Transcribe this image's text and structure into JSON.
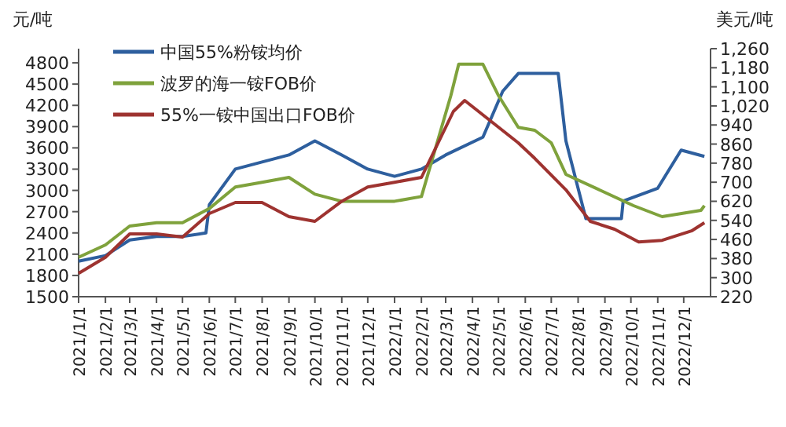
{
  "chart_data": {
    "type": "line",
    "ylabel": "元/吨",
    "y2label": "美元/吨",
    "legend": "top left",
    "grid": false,
    "marker": "none",
    "line_style": "solid",
    "xlim": [
      "2021-01-01",
      "2023-01-01"
    ],
    "xticks": [
      {
        "value": "2021-01-01",
        "label": "2021/1/1"
      },
      {
        "value": "2021-02-01",
        "label": "2021/2/1"
      },
      {
        "value": "2021-03-01",
        "label": "2021/3/1"
      },
      {
        "value": "2021-04-01",
        "label": "2021/4/1"
      },
      {
        "value": "2021-05-01",
        "label": "2021/5/1"
      },
      {
        "value": "2021-06-01",
        "label": "2021/6/1"
      },
      {
        "value": "2021-07-01",
        "label": "2021/7/1"
      },
      {
        "value": "2021-08-01",
        "label": "2021/8/1"
      },
      {
        "value": "2021-09-01",
        "label": "2021/9/1"
      },
      {
        "value": "2021-10-01",
        "label": "2021/10/1"
      },
      {
        "value": "2021-11-01",
        "label": "2021/11/1"
      },
      {
        "value": "2021-12-01",
        "label": "2021/12/1"
      },
      {
        "value": "2022-01-01",
        "label": "2022/1/1"
      },
      {
        "value": "2022-02-01",
        "label": "2022/2/1"
      },
      {
        "value": "2022-03-01",
        "label": "2022/3/1"
      },
      {
        "value": "2022-04-01",
        "label": "2022/4/1"
      },
      {
        "value": "2022-05-01",
        "label": "2022/5/1"
      },
      {
        "value": "2022-06-01",
        "label": "2022/6/1"
      },
      {
        "value": "2022-07-01",
        "label": "2022/7/1"
      },
      {
        "value": "2022-08-01",
        "label": "2022/8/1"
      },
      {
        "value": "2022-09-01",
        "label": "2022/9/1"
      },
      {
        "value": "2022-10-01",
        "label": "2022/10/1"
      },
      {
        "value": "2022-11-01",
        "label": "2022/11/1"
      },
      {
        "value": "2022-12-01",
        "label": "2022/12/1"
      }
    ],
    "ylim": [
      1500,
      5000
    ],
    "yticks": [
      1500,
      1800,
      2100,
      2400,
      2700,
      3000,
      3300,
      3600,
      3900,
      4200,
      4500,
      4800
    ],
    "y2lim": [
      220,
      1260
    ],
    "y2ticks": [
      220,
      300,
      380,
      460,
      540,
      620,
      700,
      780,
      860,
      940,
      {
        "value": 1020,
        "label": "1,020"
      },
      {
        "value": 1100,
        "label": "1,100"
      },
      {
        "value": 1180,
        "label": "1,180"
      },
      {
        "value": 1260,
        "label": "1,260"
      }
    ],
    "series": [
      {
        "name": "中国55%粉铵均价",
        "color": "#2e5f9e",
        "x": [
          "2021-01-01",
          "2021-02-01",
          "2021-03-01",
          "2021-04-01",
          "2021-05-01",
          "2021-05-28",
          "2021-06-01",
          "2021-07-01",
          "2021-08-01",
          "2021-09-01",
          "2021-10-01",
          "2021-11-01",
          "2021-12-01",
          "2022-01-01",
          "2022-02-01",
          "2022-03-01",
          "2022-04-13",
          "2022-05-06",
          "2022-05-24",
          "2022-07-09",
          "2022-07-18",
          "2022-08-10",
          "2022-09-20",
          "2022-09-22",
          "2022-11-01",
          "2022-11-28",
          "2022-12-25"
        ],
        "values": [
          2000,
          2080,
          2300,
          2350,
          2350,
          2400,
          2800,
          3300,
          3400,
          3500,
          3700,
          3500,
          3300,
          3200,
          3300,
          3500,
          3750,
          4400,
          4650,
          4650,
          3700,
          2600,
          2600,
          2850,
          3030,
          3570,
          3480
        ]
      },
      {
        "name": "波罗的海一铵FOB价",
        "color": "#7fa23c",
        "axis": "y2",
        "x": [
          "2021-01-01",
          "2021-02-01",
          "2021-03-01",
          "2021-04-01",
          "2021-05-01",
          "2021-06-01",
          "2021-07-01",
          "2021-08-01",
          "2021-09-01",
          "2021-10-01",
          "2021-11-01",
          "2021-12-01",
          "2022-01-01",
          "2022-02-01",
          "2022-03-07",
          "2022-03-16",
          "2022-04-13",
          "2022-05-01",
          "2022-05-24",
          "2022-06-12",
          "2022-07-01",
          "2022-07-18",
          "2022-10-04",
          "2022-11-06",
          "2022-12-21",
          "2022-12-25"
        ],
        "values": [
          385,
          437,
          516,
          530,
          530,
          590,
          680,
          700,
          720,
          650,
          620,
          620,
          620,
          640,
          1063,
          1195,
          1195,
          1063,
          930,
          918,
          865,
          733,
          602,
          556,
          582,
          602
        ]
      },
      {
        "name": "55%一铵中国出口FOB价",
        "color": "#9e3330",
        "axis": "y2",
        "x": [
          "2021-01-01",
          "2021-02-01",
          "2021-03-01",
          "2021-04-01",
          "2021-05-01",
          "2021-06-01",
          "2021-07-01",
          "2021-08-01",
          "2021-09-01",
          "2021-10-01",
          "2021-11-01",
          "2021-12-01",
          "2022-01-01",
          "2022-02-01",
          "2022-03-10",
          "2022-03-23",
          "2022-05-24",
          "2022-06-12",
          "2022-07-18",
          "2022-08-15",
          "2022-09-12",
          "2022-10-10",
          "2022-11-06",
          "2022-12-10",
          "2022-12-25"
        ],
        "values": [
          318,
          385,
          483,
          483,
          470,
          569,
          615,
          615,
          556,
          536,
          620,
          680,
          700,
          720,
          997,
          1043,
          865,
          800,
          668,
          536,
          503,
          450,
          456,
          496,
          530
        ]
      }
    ]
  }
}
